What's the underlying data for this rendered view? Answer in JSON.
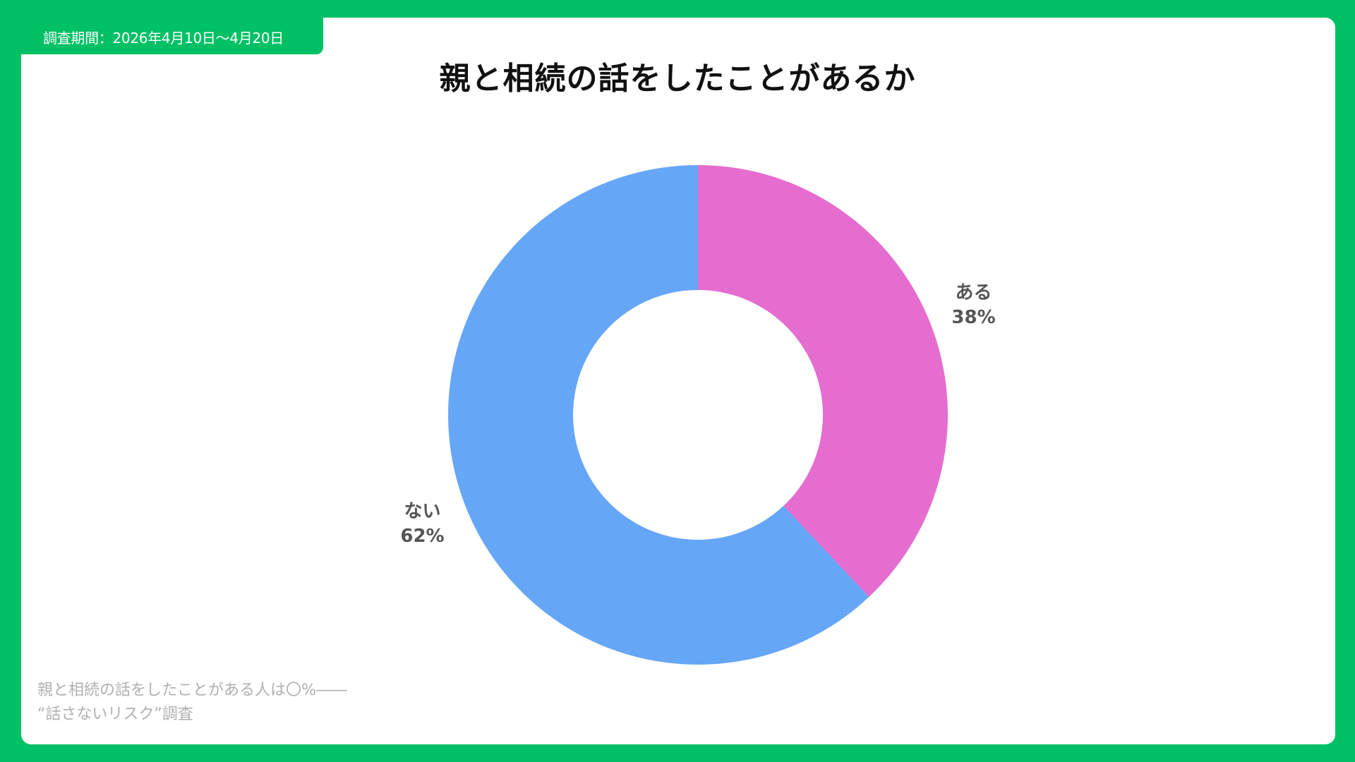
{
  "header": {
    "survey_period": "調査期間：2026年4月10日〜4月20日"
  },
  "colors": {
    "background": "#00c065",
    "card": "#ffffff"
  },
  "chart_data": {
    "type": "pie",
    "style": "donut",
    "title": "親と相続の話をしたことがあるか",
    "slices": [
      {
        "label": "ある",
        "value": 38,
        "display": "38%",
        "color": "#e56dcf"
      },
      {
        "label": "ない",
        "value": 62,
        "display": "62%",
        "color": "#66a6f7"
      }
    ],
    "start_angle": "12 o'clock",
    "direction": "clockwise",
    "legend": "none"
  },
  "footer": {
    "line1": "親と相続の話をしたことがある人は〇%――",
    "line2": "“話さないリスク”調査"
  }
}
